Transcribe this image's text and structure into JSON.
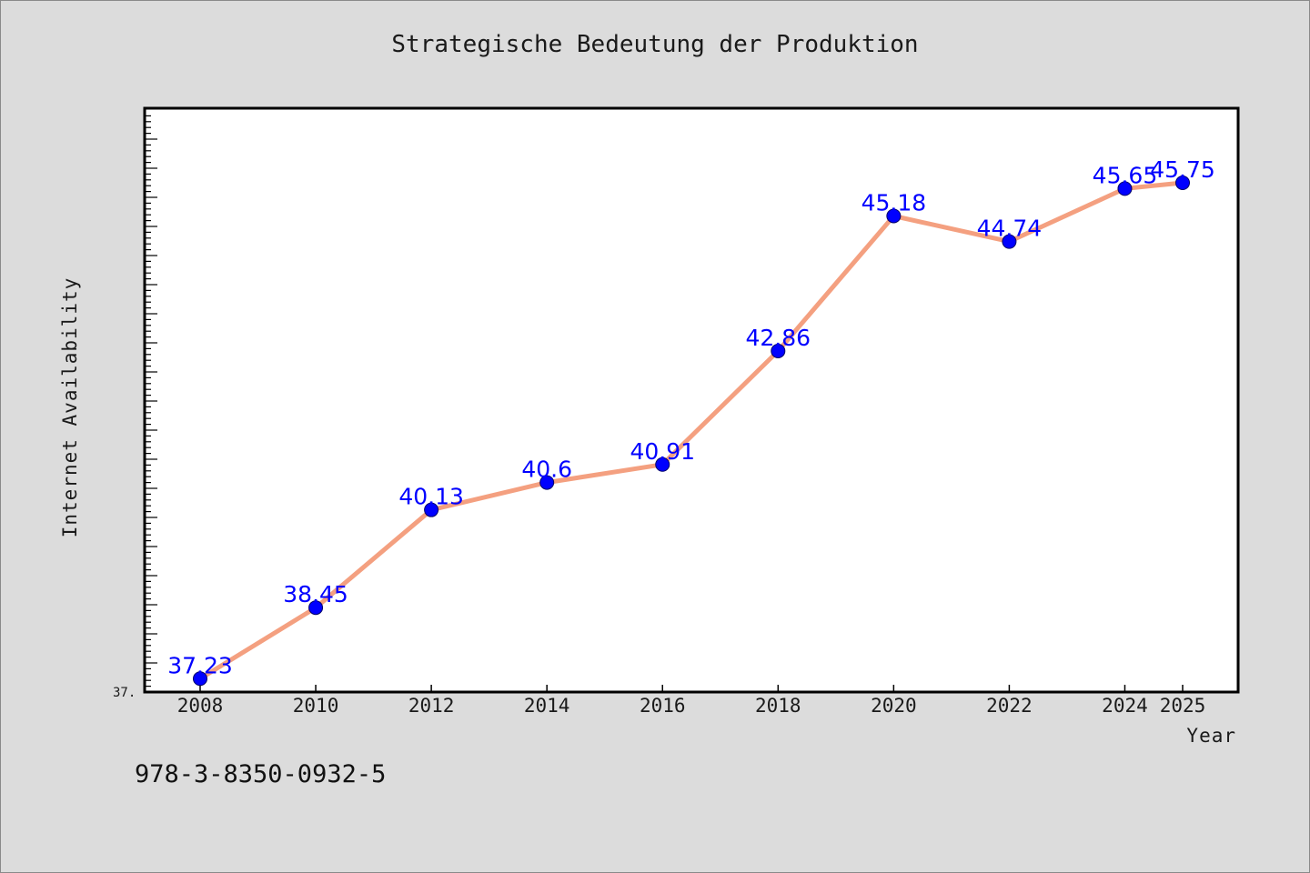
{
  "chart_data": {
    "type": "line",
    "title": "Strategische Bedeutung der Produktion",
    "xlabel": "Year",
    "ylabel": "Internet Availability",
    "x": [
      2008,
      2010,
      2012,
      2014,
      2016,
      2018,
      2020,
      2022,
      2024,
      2025
    ],
    "x_tick_labels": [
      "2008",
      "2010",
      "2012",
      "2014",
      "2016",
      "2018",
      "2020",
      "2022",
      "2024",
      "2025"
    ],
    "series": [
      {
        "values": [
          37.23,
          38.45,
          40.13,
          40.6,
          40.91,
          42.86,
          45.18,
          44.74,
          45.65,
          45.75
        ],
        "labels": [
          "37.23",
          "38.45",
          "40.13",
          "40.6",
          "40.91",
          "42.86",
          "45.18",
          "44.74",
          "45.65",
          "45.75"
        ],
        "line_color": "#f4a080",
        "marker_color": "#0000ff"
      }
    ],
    "y_min_label": "37.",
    "ylim": [
      37.0,
      47.0
    ],
    "grid": false
  },
  "footer": {
    "isbn": "978-3-8350-0932-5"
  }
}
